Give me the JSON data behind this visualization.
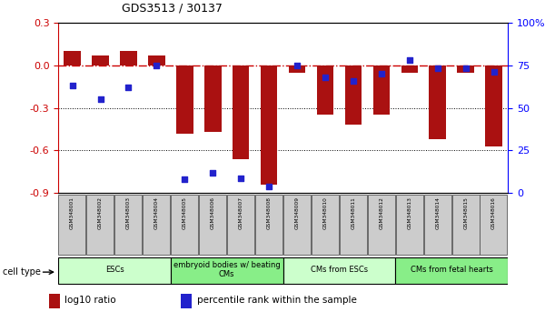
{
  "title": "GDS3513 / 30137",
  "samples": [
    "GSM348001",
    "GSM348002",
    "GSM348003",
    "GSM348004",
    "GSM348005",
    "GSM348006",
    "GSM348007",
    "GSM348008",
    "GSM348009",
    "GSM348010",
    "GSM348011",
    "GSM348012",
    "GSM348013",
    "GSM348014",
    "GSM348015",
    "GSM348016"
  ],
  "log10_ratio": [
    0.1,
    0.07,
    0.1,
    0.07,
    -0.48,
    -0.47,
    -0.66,
    -0.84,
    -0.05,
    -0.35,
    -0.42,
    -0.35,
    -0.05,
    -0.52,
    -0.05,
    -0.57
  ],
  "percentile_rank": [
    63,
    55,
    62,
    75,
    8,
    12,
    9,
    4,
    75,
    68,
    66,
    70,
    78,
    73,
    73,
    71
  ],
  "bar_color": "#aa1111",
  "dot_color": "#2222cc",
  "ylim_left": [
    -0.9,
    0.3
  ],
  "ylim_right": [
    0,
    100
  ],
  "yticks_left": [
    -0.9,
    -0.6,
    -0.3,
    0.0,
    0.3
  ],
  "yticks_right": [
    0,
    25,
    50,
    75,
    100
  ],
  "cell_types": [
    {
      "label": "ESCs",
      "start": 0,
      "end": 4,
      "color": "#ccffcc"
    },
    {
      "label": "embryoid bodies w/ beating\nCMs",
      "start": 4,
      "end": 8,
      "color": "#88ee88"
    },
    {
      "label": "CMs from ESCs",
      "start": 8,
      "end": 12,
      "color": "#ccffcc"
    },
    {
      "label": "CMs from fetal hearts",
      "start": 12,
      "end": 16,
      "color": "#88ee88"
    }
  ],
  "legend_bar_label": "log10 ratio",
  "legend_dot_label": "percentile rank within the sample",
  "cell_type_label": "cell type",
  "background_color": "#ffffff",
  "ref_line_color": "#cc0000",
  "bar_color_dark": "#8b0000"
}
